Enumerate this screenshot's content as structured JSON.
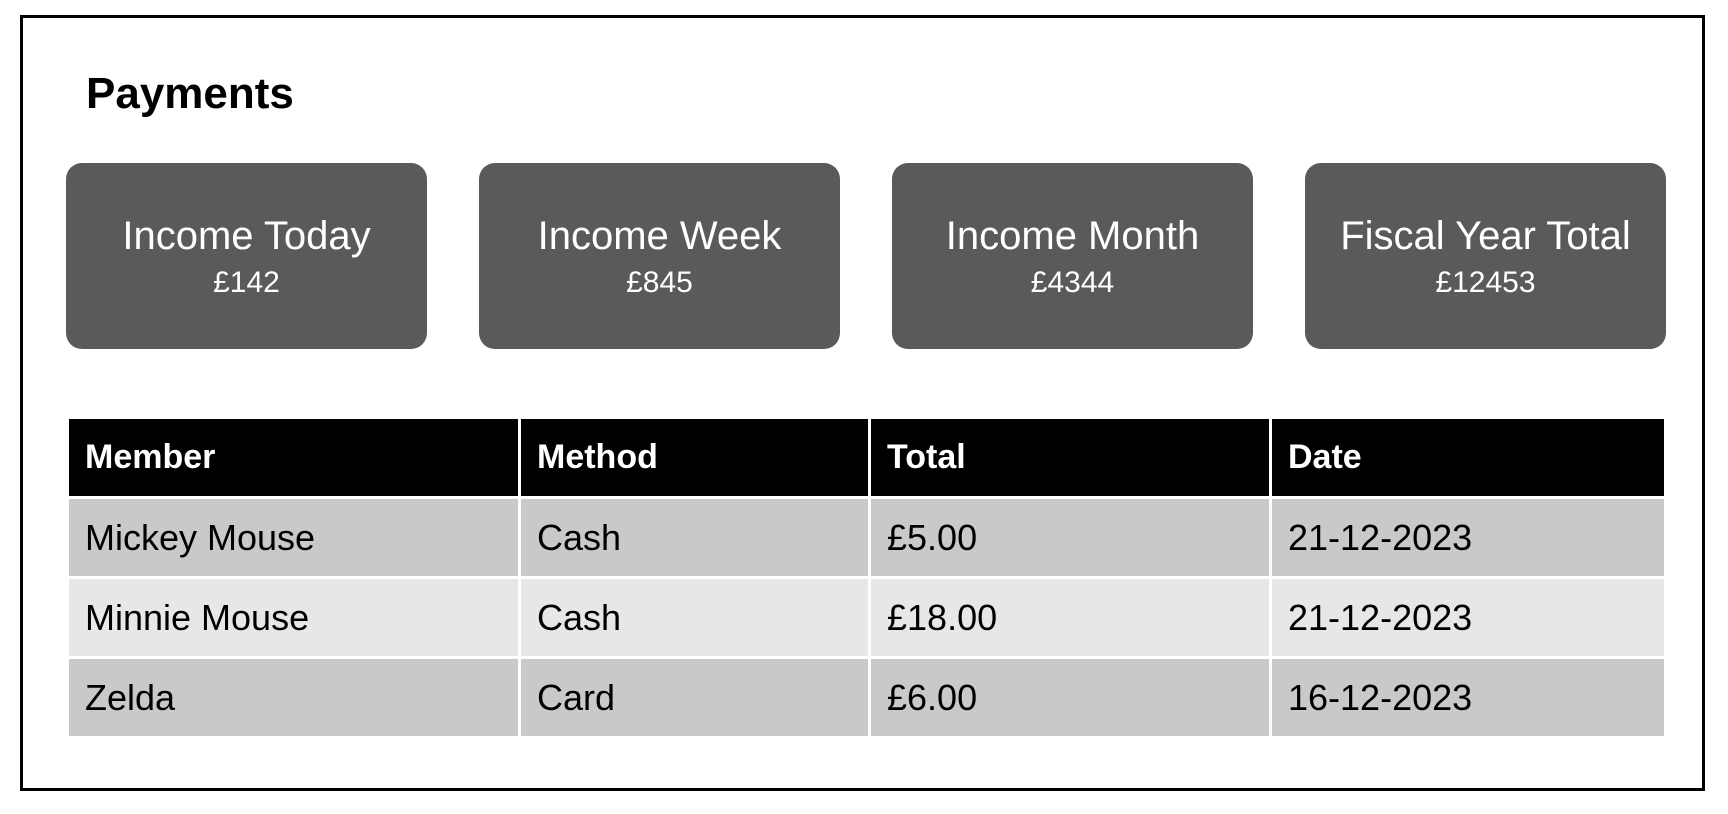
{
  "page": {
    "title": "Payments"
  },
  "stats": [
    {
      "label": "Income Today",
      "value": "£142"
    },
    {
      "label": "Income Week",
      "value": "£845"
    },
    {
      "label": "Income Month",
      "value": "£4344"
    },
    {
      "label": "Fiscal Year Total",
      "value": "£12453"
    }
  ],
  "table": {
    "headers": [
      "Member",
      "Method",
      "Total",
      "Date"
    ],
    "rows": [
      [
        "Mickey Mouse",
        "Cash",
        "£5.00",
        "21-12-2023"
      ],
      [
        "Minnie Mouse",
        "Cash",
        "£18.00",
        "21-12-2023"
      ],
      [
        "Zelda",
        "Card",
        "£6.00",
        "16-12-2023"
      ]
    ]
  },
  "colors": {
    "card_background": "#5a5a5a",
    "header_background": "#000000",
    "row_dark": "#c9c9c9",
    "row_light": "#e7e7e7"
  }
}
